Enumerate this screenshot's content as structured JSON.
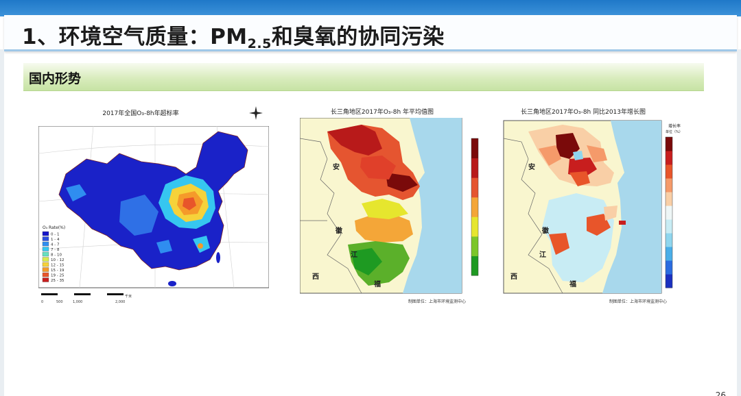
{
  "slide": {
    "title_main": "1、环境空气质量：PM",
    "title_sub": "2.5",
    "title_rest": "和臭氧的协同污染",
    "section": "国内形势",
    "page_number": "26"
  },
  "maps": [
    {
      "title": "2017年全国O₃-8h年超标率",
      "legend_title": "O₃ Rate(%)",
      "legend": [
        "0 - 1",
        "1 - 4",
        "4 - 7",
        "7 - 8",
        "8 - 10",
        "10 - 12",
        "12 - 15",
        "15 - 19",
        "19 - 25",
        "25 - 35"
      ],
      "legend_colors": [
        "#1616c8",
        "#2b4fe0",
        "#2f8df0",
        "#36c6f0",
        "#66e0c0",
        "#d8ec50",
        "#f6d23a",
        "#f59a2a",
        "#e8552a",
        "#c81e1e"
      ],
      "scalebar": [
        "0",
        "500",
        "1,000",
        "2,000"
      ],
      "scale_unit": "千米"
    },
    {
      "title": "长三角地区2017年O₃-8h 年平均值图",
      "credit": "制图单位：上海市环境监测中心",
      "labels": [
        "安",
        "徽",
        "江",
        "西",
        "福"
      ],
      "colorbar_colors": [
        "#1e9a22",
        "#7cc62a",
        "#e6e62e",
        "#f4a638",
        "#e55530",
        "#b81a1a",
        "#7a0a0a"
      ]
    },
    {
      "title": "长三角地区2017年O₃-8h 同比2013年增长图",
      "credit": "制图单位：上海市环境监测中心",
      "labels": [
        "安",
        "徽",
        "江",
        "西",
        "福"
      ],
      "legend_title": "增长率",
      "legend_unit": "单位（%）",
      "colorbar_colors": [
        "#7a0a0a",
        "#c81e1e",
        "#e8552a",
        "#f59a6a",
        "#f9cfa6",
        "#eef6f6",
        "#c8ecf4",
        "#8fd6ee",
        "#4aaee8",
        "#2a6ce0",
        "#1a30c0"
      ]
    }
  ]
}
